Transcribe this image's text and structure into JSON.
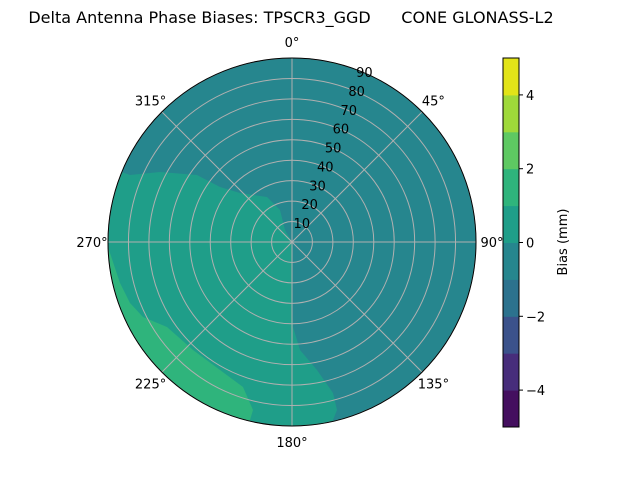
{
  "chart_data": {
    "type": "polar-contour",
    "title": "Delta Antenna Phase Biases: TPSCR3_GGD      CONE GLONASS-L2",
    "theta_ticks": [
      "0°",
      "45°",
      "90°",
      "135°",
      "180°",
      "225°",
      "270°",
      "315°"
    ],
    "theta_direction": "clockwise",
    "theta_zero": "top",
    "r_ticks": [
      "10",
      "20",
      "30",
      "40",
      "50",
      "60",
      "70",
      "80",
      "90"
    ],
    "r_range": [
      0,
      90
    ],
    "grid": true,
    "colorbar": {
      "label": "Bias (mm)",
      "levels": [
        -5,
        -4,
        -3,
        -2,
        -1,
        0,
        1,
        2,
        3,
        4,
        5
      ],
      "ticks": [
        "−4",
        "−2",
        "0",
        "2",
        "4"
      ],
      "tick_values": [
        -4,
        -2,
        0,
        2,
        4
      ],
      "colormap": "viridis",
      "band_colors": [
        "#440f5f",
        "#472d7b",
        "#3b528b",
        "#2c728e",
        "#26868e",
        "#1f9e89",
        "#2fb47c",
        "#5ec962",
        "#9fd93a",
        "#e2e418"
      ]
    },
    "regions": [
      {
        "band": "-1 to 0",
        "color": "#26868e",
        "location": "background, most of plot (east and north)"
      },
      {
        "band": "0 to 1",
        "color": "#1f9e89",
        "location": "west and south-west sector, from center to edge"
      },
      {
        "band": "1 to 2",
        "color": "#2fb47c",
        "location": "south-west edge, azimuth ~200°–265° near 70–90"
      },
      {
        "band": "0 to 1",
        "color": "#1f9e89",
        "location": "small patch near azimuth ~10°–20° at 90"
      }
    ]
  }
}
